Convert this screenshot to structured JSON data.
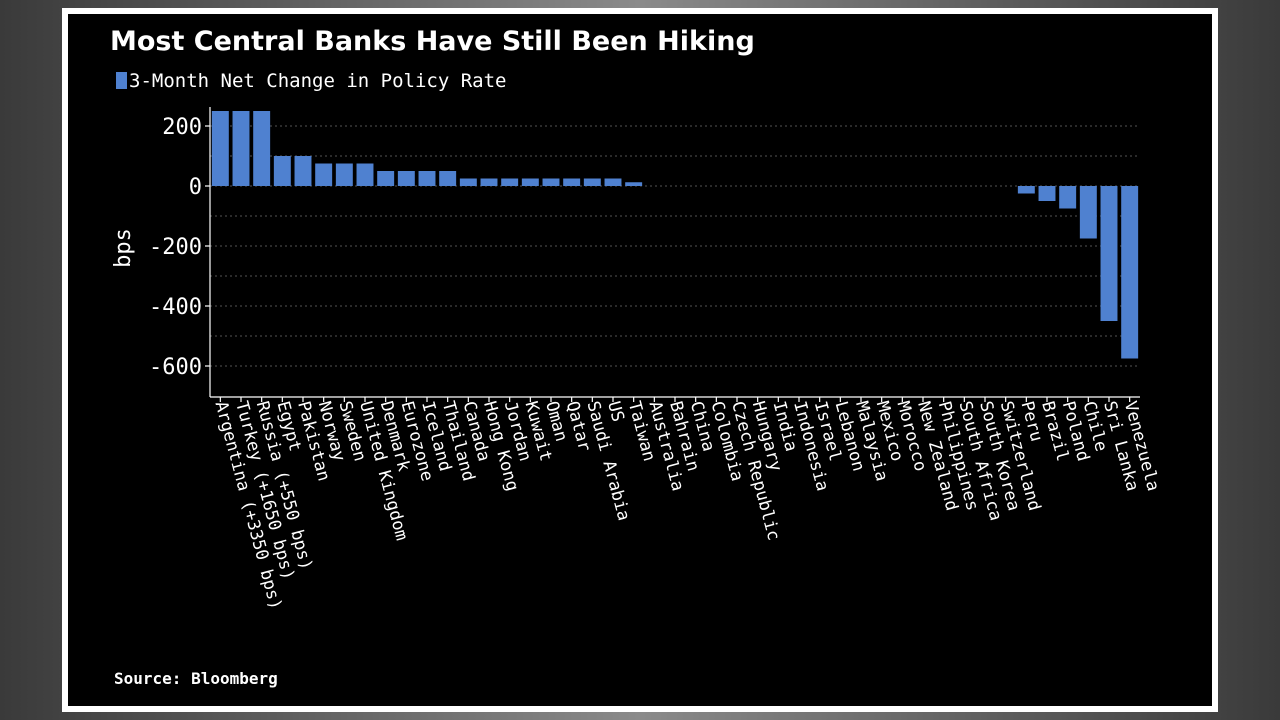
{
  "chart_data": {
    "type": "bar",
    "title": "Most Central Banks Have Still Been Hiking",
    "legend": [
      "3-Month Net Change in Policy Rate"
    ],
    "ylabel": "bps",
    "source": "Source: Bloomberg",
    "ylim": [
      -650,
      250
    ],
    "yticks": [
      200,
      0,
      -200,
      -400,
      -600
    ],
    "grid": true,
    "bar_color": "#4f81d0",
    "categories": [
      "Argentina (+3350 bps)",
      "Turkey (+1650 bps)",
      "Russia (+550 bps)",
      "Egypt",
      "Pakistan",
      "Norway",
      "Sweden",
      "United Kingdom",
      "Denmark",
      "Eurozone",
      "Iceland",
      "Thailand",
      "Canada",
      "Hong Kong",
      "Jordan",
      "Kuwait",
      "Oman",
      "Qatar",
      "Saudi Arabia",
      "US",
      "Taiwan",
      "Australia",
      "Bahrain",
      "China",
      "Colombia",
      "Czech Republic",
      "Hungary",
      "India",
      "Indonesia",
      "Israel",
      "Lebanon",
      "Malaysia",
      "Mexico",
      "Morocco",
      "New Zealand",
      "Philippines",
      "South Africa",
      "South Korea",
      "Switzerland",
      "Peru",
      "Brazil",
      "Poland",
      "Chile",
      "Sri Lanka",
      "Venezuela"
    ],
    "values": [
      250,
      250,
      250,
      100,
      100,
      75,
      75,
      75,
      50,
      50,
      50,
      50,
      25,
      25,
      25,
      25,
      25,
      25,
      25,
      25,
      12.5,
      0,
      0,
      0,
      0,
      0,
      0,
      0,
      0,
      0,
      0,
      0,
      0,
      0,
      0,
      0,
      0,
      0,
      0,
      -25,
      -50,
      -75,
      -175,
      -450,
      -575
    ]
  }
}
